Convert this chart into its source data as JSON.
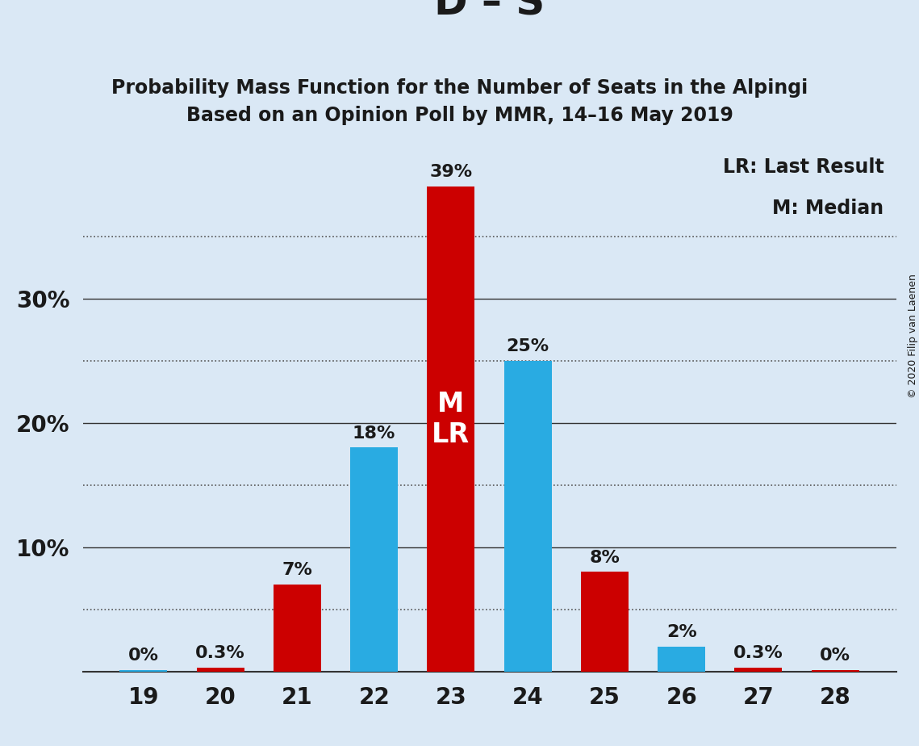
{
  "title": "D – S",
  "subtitle1": "Probability Mass Function for the Number of Seats in the Alpingi",
  "subtitle2": "Based on an Opinion Poll by MMR, 14–16 May 2019",
  "copyright": "© 2020 Filip van Laenen",
  "legend_lr": "LR: Last Result",
  "legend_m": "M: Median",
  "seats": [
    19,
    20,
    21,
    22,
    23,
    24,
    25,
    26,
    27,
    28
  ],
  "bar_colors": [
    "#29ABE2",
    "#CC0000",
    "#CC0000",
    "#29ABE2",
    "#CC0000",
    "#29ABE2",
    "#CC0000",
    "#29ABE2",
    "#CC0000",
    "#CC0000"
  ],
  "bar_values": [
    0.001,
    0.003,
    0.07,
    0.18,
    0.39,
    0.25,
    0.08,
    0.02,
    0.003,
    0.001
  ],
  "bar_labels": [
    "0%",
    "0.3%",
    "7%",
    "18%",
    "39%",
    "25%",
    "8%",
    "2%",
    "0.3%",
    "0%"
  ],
  "label_colors": [
    "#1A1A1A",
    "#1A1A1A",
    "#1A1A1A",
    "#1A1A1A",
    "#1A1A1A",
    "#1A1A1A",
    "#1A1A1A",
    "#1A1A1A",
    "#1A1A1A",
    "#1A1A1A"
  ],
  "blue_color": "#29ABE2",
  "red_color": "#CC0000",
  "background_color": "#DAE8F5",
  "text_color": "#1A1A1A",
  "median_seat_idx": 4,
  "ylim": [
    0,
    0.42
  ],
  "solid_yticks": [
    0.1,
    0.2,
    0.3
  ],
  "dotted_yticks": [
    0.05,
    0.15,
    0.25,
    0.35
  ],
  "shown_ytick_labels": [
    0.1,
    0.2,
    0.3
  ],
  "shown_ytick_strings": [
    "10%",
    "20%",
    "30%"
  ]
}
